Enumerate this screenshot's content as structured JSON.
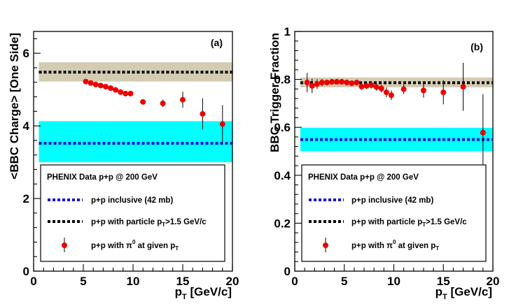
{
  "chart_data": [
    {
      "type": "scatter",
      "panel_label": "(a)",
      "xlabel": "p",
      "xlabel_sub": "T",
      "xlabel_unit": " [GeV/c]",
      "ylabel": "<BBC Charge> [One Side]",
      "xlim": [
        0,
        20
      ],
      "ylim": [
        0,
        6.6
      ],
      "x_ticks": [
        0,
        5,
        10,
        15,
        20
      ],
      "x_tick_labels": [
        "0",
        "5",
        "10",
        "15",
        "20"
      ],
      "y_ticks": [
        0,
        2,
        4,
        6
      ],
      "y_tick_labels": [
        "0",
        "2",
        "4",
        "6"
      ],
      "bands": [
        {
          "name": "p+p with particle pT>1.5 GeV/c",
          "center": 5.48,
          "low": 5.22,
          "high": 5.75,
          "fill": "#d3cbb2",
          "line": "#000000"
        },
        {
          "name": "p+p inclusive (42 mb)",
          "center": 3.52,
          "low": 3.0,
          "high": 4.13,
          "fill": "#00ffff",
          "line": "#1010dd"
        }
      ],
      "points": {
        "name": "p+p with pi0 at given pT",
        "x": [
          5.25,
          5.75,
          6.25,
          6.75,
          7.25,
          7.75,
          8.25,
          8.75,
          9.25,
          9.75,
          11,
          13,
          15,
          17,
          19
        ],
        "y": [
          5.22,
          5.18,
          5.14,
          5.11,
          5.08,
          5.04,
          4.99,
          4.93,
          4.89,
          4.89,
          4.66,
          4.62,
          4.72,
          4.33,
          4.05
        ],
        "yerr": [
          0.02,
          0.02,
          0.02,
          0.02,
          0.03,
          0.03,
          0.04,
          0.05,
          0.06,
          0.07,
          0.05,
          0.1,
          0.22,
          0.43,
          0.52
        ]
      },
      "legend": {
        "title": "PHENIX Data p+p @ 200 GeV",
        "inclusive_label": "p+p inclusive (42 mb)",
        "particle_label_pre": "p+p with particle p",
        "particle_label_sub": "T",
        "particle_label_post": ">1.5 GeV/c",
        "pi0_label_pre": "p+p with ",
        "pi0_symbol": "π",
        "pi0_sup": "0",
        "pi0_label_mid": " at given p",
        "pi0_label_sub": "T"
      }
    },
    {
      "type": "scatter",
      "panel_label": "(b)",
      "xlabel": "p",
      "xlabel_sub": "T",
      "xlabel_unit": " [GeV/c]",
      "ylabel": "BBC Trigger Fraction",
      "xlim": [
        0,
        20
      ],
      "ylim": [
        0,
        1
      ],
      "x_ticks": [
        0,
        5,
        10,
        15,
        20
      ],
      "x_tick_labels": [
        "0",
        "5",
        "10",
        "15",
        "20"
      ],
      "y_ticks": [
        0,
        0.2,
        0.4,
        0.6,
        0.8,
        1
      ],
      "y_tick_labels": [
        "0",
        "0.2",
        "0.4",
        "0.6",
        "0.8",
        "1"
      ],
      "bands": [
        {
          "name": "p+p with particle pT>1.5 GeV/c",
          "center": 0.786,
          "low": 0.767,
          "high": 0.808,
          "fill": "#d3cbb2",
          "line": "#000000"
        },
        {
          "name": "p+p inclusive (42 mb)",
          "center": 0.549,
          "low": 0.5,
          "high": 0.598,
          "fill": "#00ffff",
          "line": "#1010dd"
        }
      ],
      "points": {
        "name": "p+p with pi0 at given pT",
        "x": [
          1.25,
          1.75,
          2.25,
          2.75,
          3.25,
          3.75,
          4.25,
          4.75,
          5.25,
          5.75,
          6.25,
          6.75,
          7.25,
          7.75,
          8.25,
          8.75,
          9.25,
          9.75,
          11,
          13,
          15,
          17,
          19
        ],
        "y": [
          0.787,
          0.773,
          0.781,
          0.787,
          0.787,
          0.79,
          0.79,
          0.79,
          0.787,
          0.784,
          0.787,
          0.77,
          0.773,
          0.776,
          0.768,
          0.762,
          0.746,
          0.734,
          0.759,
          0.754,
          0.746,
          0.769,
          0.578
        ],
        "yerr": [
          0.04,
          0.03,
          0.02,
          0.015,
          0.012,
          0.012,
          0.012,
          0.012,
          0.012,
          0.012,
          0.012,
          0.013,
          0.013,
          0.014,
          0.015,
          0.016,
          0.02,
          0.02,
          0.02,
          0.03,
          0.05,
          0.1,
          0.16
        ]
      },
      "legend": {
        "title": "PHENIX Data p+p @ 200 GeV",
        "inclusive_label": "p+p inclusive (42 mb)",
        "particle_label_pre": "p+p with particle p",
        "particle_label_sub": "T",
        "particle_label_post": ">1.5 GeV/c",
        "pi0_label_pre": "p+p with ",
        "pi0_symbol": "π",
        "pi0_sup": "0",
        "pi0_label_mid": " at given p",
        "pi0_label_sub": "T"
      }
    }
  ],
  "colors": {
    "marker": "#ee0000",
    "band_particle": "#d3cbb2",
    "band_inclusive": "#00ffff",
    "line_particle": "#000000",
    "line_inclusive": "#1010dd"
  }
}
